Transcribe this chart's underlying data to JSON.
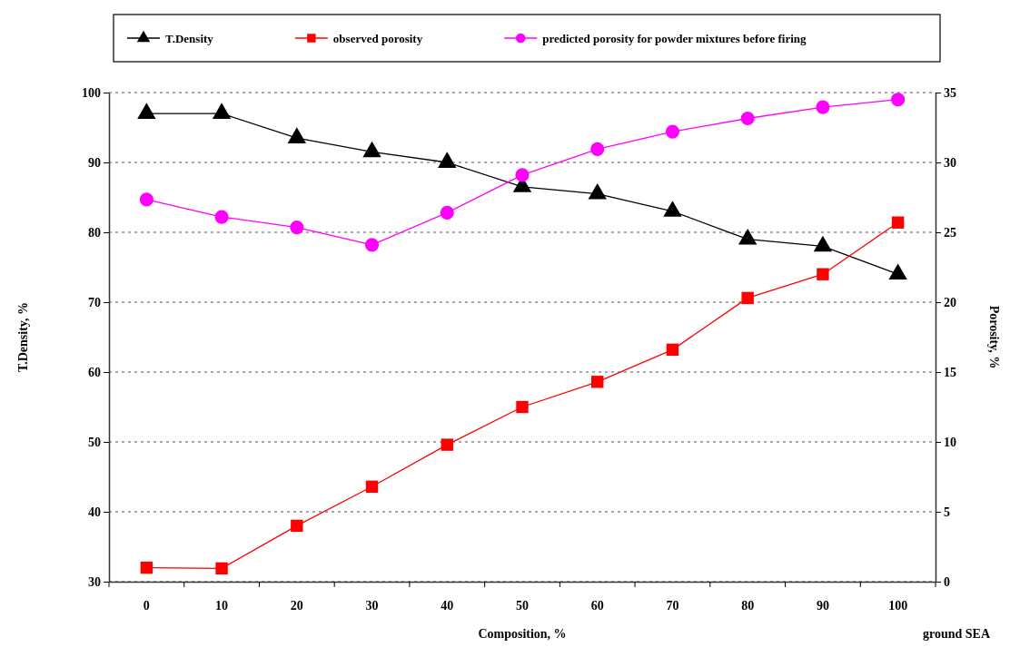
{
  "chart_data": {
    "type": "line",
    "categories": [
      "0",
      "10",
      "20",
      "30",
      "40",
      "50",
      "60",
      "70",
      "80",
      "90",
      "100"
    ],
    "xlabel": "Composition, %",
    "ylabel": "T.Density, %",
    "y2label": "Porosity, %",
    "annotations": [
      "ground SEA"
    ],
    "ylim": [
      30,
      100
    ],
    "yticks": [
      30,
      40,
      50,
      60,
      70,
      80,
      90,
      100
    ],
    "y2lim": [
      0,
      35
    ],
    "y2ticks": [
      0,
      5,
      10,
      15,
      20,
      25,
      30,
      35
    ],
    "grid": "y",
    "legend": "top",
    "series": [
      {
        "name": "T.Density",
        "color": "#000000",
        "marker": "triangle",
        "values": [
          97,
          97,
          93.5,
          91.5,
          90,
          86.5,
          85.5,
          83,
          79,
          78,
          74
        ]
      },
      {
        "name": "observed porosity",
        "color": "#ff0000",
        "marker": "square",
        "axis": "y2",
        "values": [
          1.0,
          0.95,
          4.0,
          6.8,
          9.8,
          12.5,
          14.3,
          16.6,
          20.3,
          22.0,
          25.7
        ]
      },
      {
        "name": "predicted porosity for powder mixtures before firing",
        "color": "#ff00ff",
        "marker": "circle",
        "axis": "y2",
        "values": [
          27.35,
          26.1,
          25.35,
          24.1,
          26.4,
          29.1,
          30.95,
          32.2,
          33.15,
          33.95,
          34.5
        ]
      }
    ]
  }
}
